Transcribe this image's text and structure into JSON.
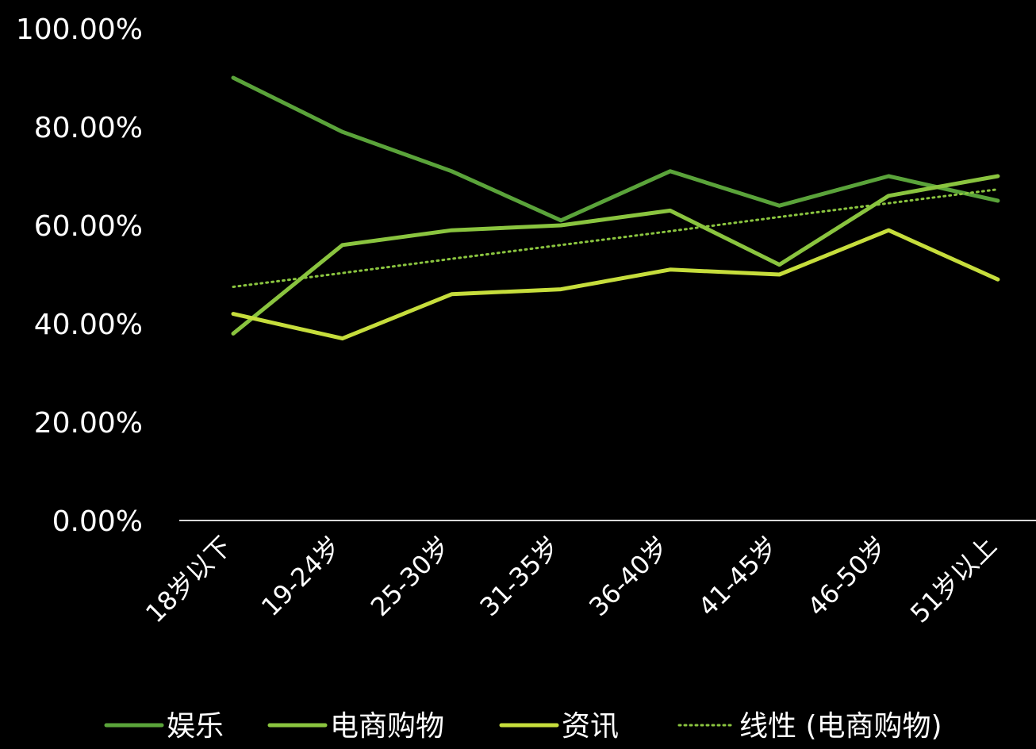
{
  "chart_data": {
    "type": "line",
    "categories": [
      "18岁以下",
      "19-24岁",
      "25-30岁",
      "31-35岁",
      "36-40岁",
      "41-45岁",
      "46-50岁",
      "51岁以上"
    ],
    "ylim": [
      0,
      1
    ],
    "yticks": [
      "0.00%",
      "20.00%",
      "40.00%",
      "60.00%",
      "80.00%",
      "100.00%"
    ],
    "ytick_values": [
      0,
      0.2,
      0.4,
      0.6,
      0.8,
      1.0
    ],
    "grid": false,
    "legend_position": "bottom",
    "series": [
      {
        "name": "娱乐",
        "color": "#5aa33a",
        "style": "solid",
        "values": [
          0.9,
          0.79,
          0.71,
          0.61,
          0.71,
          0.64,
          0.7,
          0.65
        ]
      },
      {
        "name": "电商购物",
        "color": "#8ac43f",
        "style": "solid",
        "values": [
          0.38,
          0.56,
          0.59,
          0.6,
          0.63,
          0.52,
          0.66,
          0.7
        ]
      },
      {
        "name": "资讯",
        "color": "#c6dd3c",
        "style": "solid",
        "values": [
          0.42,
          0.37,
          0.46,
          0.47,
          0.51,
          0.5,
          0.59,
          0.49
        ]
      },
      {
        "name": "线性 (电商购物)",
        "color": "#8ac43f",
        "style": "dotted",
        "values": [
          0.475,
          0.503,
          0.532,
          0.56,
          0.588,
          0.617,
          0.645,
          0.673
        ]
      }
    ]
  }
}
